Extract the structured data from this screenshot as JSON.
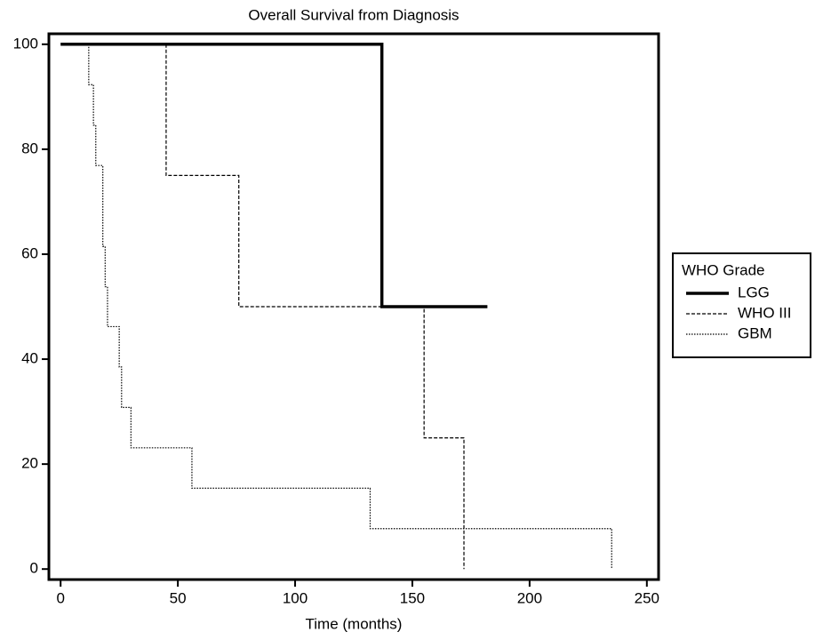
{
  "chart_data": {
    "type": "line",
    "title": "Overall Survival from Diagnosis",
    "x_label": "Time (months)",
    "legend_title": "WHO Grade",
    "legend": "right",
    "xlim": [
      -5,
      255
    ],
    "ylim": [
      -2,
      102
    ],
    "xticks": [
      0,
      50,
      100,
      150,
      200,
      250
    ],
    "yticks": [
      0,
      20,
      40,
      60,
      80,
      100
    ],
    "series": [
      {
        "name": "LGG",
        "color": "#000000",
        "line_style": "solid",
        "x": [
          0,
          137,
          137,
          182
        ],
        "values": [
          100,
          100,
          50,
          50
        ]
      },
      {
        "name": "WHO III",
        "color": "#000000",
        "line_style": "dashed",
        "x": [
          45,
          45,
          76,
          76,
          155,
          155,
          172,
          172
        ],
        "values": [
          100,
          75,
          75,
          50,
          50,
          25,
          25,
          0
        ]
      },
      {
        "name": "GBM",
        "color": "#000000",
        "line_style": "dotted",
        "x": [
          12,
          12,
          14,
          14,
          15,
          15,
          18,
          18,
          19,
          19,
          20,
          20,
          25,
          25,
          26,
          26,
          30,
          30,
          56,
          56,
          132,
          132,
          235,
          235
        ],
        "values": [
          100,
          92.3,
          92.3,
          84.6,
          84.6,
          76.9,
          76.9,
          61.5,
          61.5,
          53.8,
          53.8,
          46.2,
          46.2,
          38.5,
          38.5,
          30.8,
          30.8,
          23.1,
          23.1,
          15.4,
          15.4,
          7.7,
          7.7,
          0
        ]
      }
    ]
  }
}
